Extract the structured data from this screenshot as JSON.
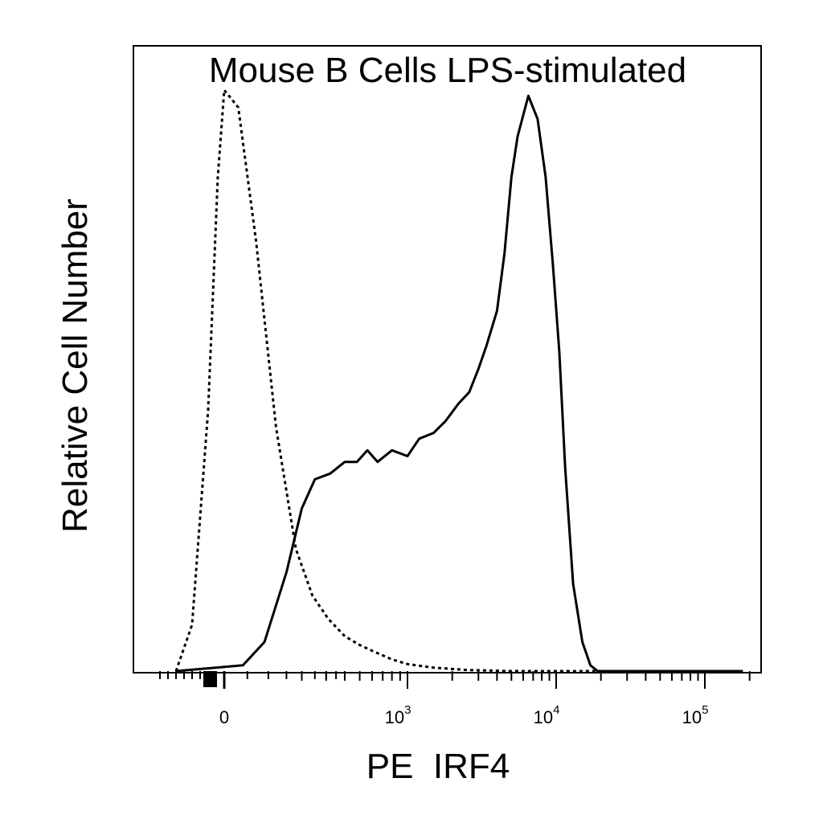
{
  "chart_data": {
    "type": "line",
    "title": "Mouse B Cells LPS-stimulated",
    "xlabel": "PE  IRF4",
    "ylabel": "Relative Cell Number",
    "x_scale": "biexponential (logicle)",
    "x_ticks": [
      {
        "value": 0,
        "base": "0",
        "exp": ""
      },
      {
        "value": 1000,
        "base": "10",
        "exp": "3"
      },
      {
        "value": 10000,
        "base": "10",
        "exp": "4"
      },
      {
        "value": 100000,
        "base": "10",
        "exp": "5"
      }
    ],
    "y_ticks_shown": false,
    "grid": false,
    "legend": "none",
    "series": [
      {
        "style": "dashed",
        "color": "#000000",
        "x": [
          -300,
          -200,
          -100,
          -40,
          0,
          30,
          70,
          120,
          180,
          240,
          310,
          400,
          500,
          600,
          800,
          1000,
          1500,
          2500,
          5000,
          10000,
          30000,
          180000
        ],
        "y": [
          0.0,
          0.08,
          0.45,
          0.85,
          1.0,
          0.97,
          0.74,
          0.42,
          0.21,
          0.13,
          0.09,
          0.06,
          0.045,
          0.035,
          0.02,
          0.012,
          0.006,
          0.002,
          0.0,
          0.0,
          0.0,
          0.0
        ]
      },
      {
        "style": "solid",
        "color": "#000000",
        "x": [
          -300,
          40,
          90,
          150,
          200,
          250,
          320,
          400,
          480,
          560,
          650,
          800,
          1000,
          1200,
          1500,
          1800,
          2200,
          2600,
          3000,
          3400,
          4000,
          4500,
          5000,
          5500,
          6500,
          7500,
          8500,
          9500,
          10500,
          11500,
          13000,
          15000,
          17000,
          19000,
          22000,
          26000,
          32000,
          180000
        ],
        "y": [
          0.0,
          0.01,
          0.05,
          0.17,
          0.28,
          0.33,
          0.34,
          0.36,
          0.36,
          0.38,
          0.36,
          0.38,
          0.37,
          0.4,
          0.41,
          0.43,
          0.46,
          0.48,
          0.52,
          0.56,
          0.62,
          0.72,
          0.85,
          0.92,
          0.99,
          0.95,
          0.85,
          0.7,
          0.55,
          0.35,
          0.15,
          0.05,
          0.01,
          0.0,
          0.0,
          0.0,
          0.0,
          0.0
        ]
      }
    ]
  }
}
